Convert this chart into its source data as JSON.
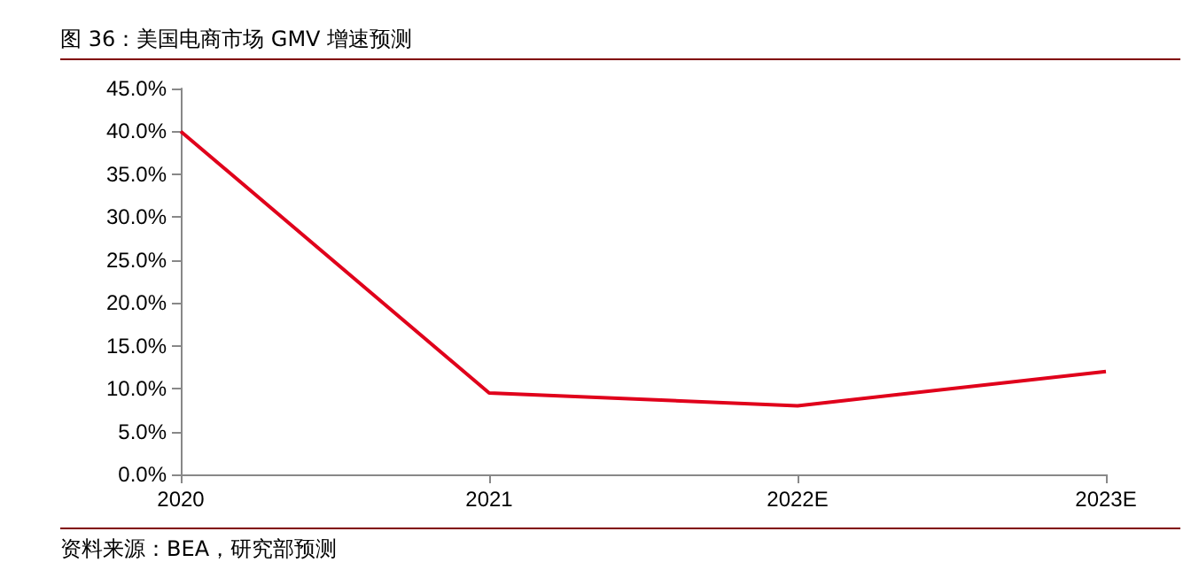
{
  "chart_data": {
    "type": "line",
    "title": "图 36：美国电商市场 GMV 增速预测",
    "categories": [
      "2020",
      "2021",
      "2022E",
      "2023E"
    ],
    "series": [
      {
        "color": "#e0001b",
        "values": [
          40.0,
          9.5,
          8.0,
          12.0
        ]
      }
    ],
    "ylim": [
      0,
      45
    ],
    "yticks": [
      {
        "value": 0,
        "label": "0.0%"
      },
      {
        "value": 5,
        "label": "5.0%"
      },
      {
        "value": 10,
        "label": "10.0%"
      },
      {
        "value": 15,
        "label": "15.0%"
      },
      {
        "value": 20,
        "label": "20.0%"
      },
      {
        "value": 25,
        "label": "25.0%"
      },
      {
        "value": 30,
        "label": "30.0%"
      },
      {
        "value": 35,
        "label": "35.0%"
      },
      {
        "value": 40,
        "label": "40.0%"
      },
      {
        "value": 45,
        "label": "45.0%"
      }
    ],
    "grid": false,
    "marker": "none",
    "line_style": "solid",
    "annotations": [
      "资料来源：BEA，研究部预测"
    ]
  }
}
